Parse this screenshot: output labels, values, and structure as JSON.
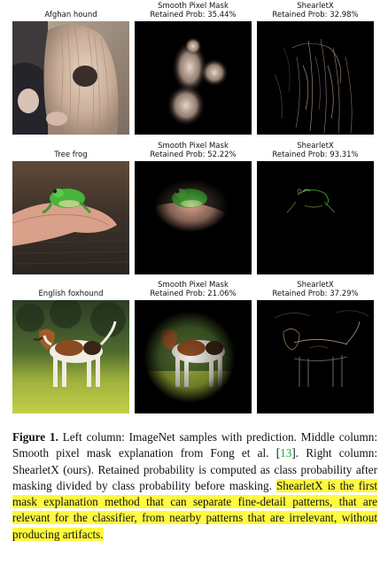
{
  "rows": [
    {
      "left_label": "Afghan hound",
      "mid_label_1": "Smooth Pixel Mask",
      "mid_label_2": "Retained Prob: 35.44%",
      "right_label_1": "ShearletX",
      "right_label_2": "Retained Prob: 32.98%"
    },
    {
      "left_label": "Tree frog",
      "mid_label_1": "Smooth Pixel Mask",
      "mid_label_2": "Retained Prob: 52.22%",
      "right_label_1": "ShearletX",
      "right_label_2": "Retained Prob: 93.31%"
    },
    {
      "left_label": "English foxhound",
      "mid_label_1": "Smooth Pixel Mask",
      "mid_label_2": "Retained Prob: 21.06%",
      "right_label_1": "ShearletX",
      "right_label_2": "Retained Prob: 37.29%"
    }
  ],
  "caption": {
    "figure_label": "Figure 1.",
    "text_1": " Left column: ImageNet samples with prediction. Middle column: Smooth pixel mask explanation from Fong et al. ",
    "cite_open": "[",
    "cite_num": "13",
    "cite_close": "]",
    "text_2": ". Right column: ShearletX (ours). Retained probability is computed as class probability after masking divided by class probability before masking. ",
    "highlight": "ShearletX is the first mask explanation method that can separate fine-detail patterns, that are relevant for the classifier, from nearby patterns that are irrelevant, without producing artifacts."
  }
}
